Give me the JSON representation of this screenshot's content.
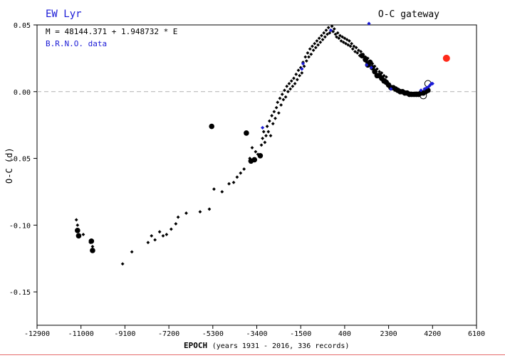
{
  "header": {
    "star_name": "EW Lyr",
    "gateway": "O-C gateway",
    "ephemeris": "M = 48144.371 + 1.948732 * E",
    "source": "B.R.N.O. data"
  },
  "colors": {
    "star_name": "#1a1ad6",
    "brno": "#1a1ad6",
    "highlight": "#ff2a1a",
    "points": "#000000",
    "zero_line": "#b0b0b0"
  },
  "chart_data": {
    "type": "scatter",
    "xlabel": "EPOCH",
    "xlabel_note": "(years 1931 - 2016, 336 records)",
    "ylabel": "O-C (d)",
    "xlim": [
      -12900,
      6100
    ],
    "ylim": [
      -0.175,
      0.05
    ],
    "grid": false,
    "zero_line": true,
    "x_ticks": [
      -12900,
      -11000,
      -9100,
      -7200,
      -5300,
      -3400,
      -1500,
      400,
      2300,
      4200,
      6100
    ],
    "x_tick_labels": [
      "-12900",
      "-11000",
      "-9100",
      "-7200",
      "-5300",
      "-3400",
      "-1500",
      "400",
      "2300",
      "4200",
      "6100"
    ],
    "y_ticks": [
      0.05,
      0.0,
      -0.05,
      -0.1,
      -0.15
    ],
    "y_tick_labels": [
      "0.05",
      "0.00",
      "-0.05",
      "-0.10",
      "-0.15"
    ],
    "series": [
      {
        "marker": "small-diamond",
        "color": "#000000",
        "points": [
          [
            -11200,
            -0.096
          ],
          [
            -11150,
            -0.1
          ],
          [
            -10900,
            -0.107
          ],
          [
            -10600,
            -0.113
          ],
          [
            -10500,
            -0.116
          ],
          [
            -9200,
            -0.129
          ],
          [
            -8800,
            -0.12
          ],
          [
            -8100,
            -0.113
          ],
          [
            -7950,
            -0.108
          ],
          [
            -7800,
            -0.111
          ],
          [
            -7600,
            -0.105
          ],
          [
            -7450,
            -0.108
          ],
          [
            -7300,
            -0.107
          ],
          [
            -7100,
            -0.103
          ],
          [
            -6900,
            -0.099
          ],
          [
            -6800,
            -0.094
          ],
          [
            -6450,
            -0.091
          ],
          [
            -5850,
            -0.09
          ],
          [
            -5450,
            -0.088
          ],
          [
            -5250,
            -0.073
          ],
          [
            -4900,
            -0.075
          ],
          [
            -4600,
            -0.069
          ],
          [
            -4400,
            -0.068
          ],
          [
            -4250,
            -0.064
          ],
          [
            -4100,
            -0.061
          ],
          [
            -3950,
            -0.058
          ],
          [
            -3700,
            -0.05
          ],
          [
            -3600,
            -0.042
          ],
          [
            -3450,
            -0.045
          ],
          [
            -3350,
            -0.047
          ],
          [
            -3200,
            -0.04
          ],
          [
            -3150,
            -0.035
          ],
          [
            -3100,
            -0.03
          ],
          [
            -3050,
            -0.038
          ],
          [
            -3000,
            -0.033
          ],
          [
            -2950,
            -0.026
          ],
          [
            -2900,
            -0.03
          ],
          [
            -2850,
            -0.022
          ],
          [
            -2800,
            -0.033
          ],
          [
            -2750,
            -0.018
          ],
          [
            -2700,
            -0.024
          ],
          [
            -2650,
            -0.015
          ],
          [
            -2600,
            -0.02
          ],
          [
            -2550,
            -0.012
          ],
          [
            -2500,
            -0.008
          ],
          [
            -2450,
            -0.016
          ],
          [
            -2400,
            -0.005
          ],
          [
            -2350,
            -0.01
          ],
          [
            -2300,
            -0.002
          ],
          [
            -2250,
            -0.006
          ],
          [
            -2200,
            0.001
          ],
          [
            -2150,
            -0.004
          ],
          [
            -2100,
            0.004
          ],
          [
            -2050,
            0.0
          ],
          [
            -2000,
            0.006
          ],
          [
            -1950,
            0.002
          ],
          [
            -1900,
            0.008
          ],
          [
            -1850,
            0.004
          ],
          [
            -1800,
            0.01
          ],
          [
            -1750,
            0.006
          ],
          [
            -1700,
            0.013
          ],
          [
            -1650,
            0.009
          ],
          [
            -1600,
            0.016
          ],
          [
            -1550,
            0.012
          ],
          [
            -1500,
            0.018
          ],
          [
            -1450,
            0.014
          ],
          [
            -1400,
            0.022
          ],
          [
            -1350,
            0.019
          ],
          [
            -1300,
            0.026
          ],
          [
            -1250,
            0.023
          ],
          [
            -1200,
            0.029
          ],
          [
            -1150,
            0.026
          ],
          [
            -1100,
            0.032
          ],
          [
            -1050,
            0.028
          ],
          [
            -1000,
            0.034
          ],
          [
            -950,
            0.031
          ],
          [
            -900,
            0.036
          ],
          [
            -850,
            0.033
          ],
          [
            -800,
            0.038
          ],
          [
            -750,
            0.035
          ],
          [
            -700,
            0.04
          ],
          [
            -650,
            0.037
          ],
          [
            -600,
            0.042
          ],
          [
            -550,
            0.039
          ],
          [
            -500,
            0.044
          ],
          [
            -450,
            0.041
          ],
          [
            -400,
            0.046
          ],
          [
            -350,
            0.043
          ],
          [
            -300,
            0.048
          ],
          [
            -250,
            0.044
          ],
          [
            -200,
            0.046
          ],
          [
            -150,
            0.049
          ],
          [
            -100,
            0.045
          ],
          [
            -50,
            0.047
          ],
          [
            0,
            0.043
          ],
          [
            50,
            0.041
          ],
          [
            100,
            0.044
          ],
          [
            150,
            0.04
          ],
          [
            200,
            0.042
          ],
          [
            250,
            0.038
          ],
          [
            300,
            0.041
          ],
          [
            350,
            0.037
          ],
          [
            400,
            0.04
          ],
          [
            450,
            0.036
          ],
          [
            500,
            0.039
          ],
          [
            550,
            0.035
          ],
          [
            600,
            0.038
          ],
          [
            650,
            0.034
          ],
          [
            700,
            0.036
          ],
          [
            750,
            0.032
          ],
          [
            800,
            0.034
          ],
          [
            850,
            0.03
          ],
          [
            900,
            0.033
          ],
          [
            950,
            0.029
          ],
          [
            1000,
            0.031
          ],
          [
            1050,
            0.027
          ],
          [
            1100,
            0.03
          ],
          [
            1150,
            0.026
          ],
          [
            1200,
            0.028
          ],
          [
            1250,
            0.024
          ],
          [
            1300,
            0.026
          ],
          [
            1350,
            0.022
          ],
          [
            1400,
            0.025
          ],
          [
            1450,
            0.021
          ],
          [
            1500,
            0.023
          ],
          [
            1550,
            0.019
          ],
          [
            1600,
            0.021
          ],
          [
            1650,
            0.017
          ],
          [
            1700,
            0.019
          ],
          [
            1750,
            0.015
          ],
          [
            1800,
            0.017
          ],
          [
            1850,
            0.013
          ],
          [
            1900,
            0.015
          ],
          [
            1950,
            0.012
          ],
          [
            2000,
            0.014
          ],
          [
            2050,
            0.01
          ],
          [
            2100,
            0.012
          ],
          [
            2150,
            0.009
          ],
          [
            2200,
            0.011
          ]
        ]
      },
      {
        "marker": "large-dot",
        "color": "#000000",
        "points": [
          [
            -11150,
            -0.104
          ],
          [
            -11100,
            -0.108
          ],
          [
            -10550,
            -0.112
          ],
          [
            -10500,
            -0.119
          ],
          [
            -5350,
            -0.026
          ],
          [
            -3850,
            -0.031
          ],
          [
            -3650,
            -0.052
          ],
          [
            -3500,
            -0.051
          ],
          [
            -3250,
            -0.048
          ],
          [
            1150,
            0.027
          ],
          [
            1300,
            0.024
          ],
          [
            1400,
            0.02
          ],
          [
            1500,
            0.022
          ],
          [
            1600,
            0.018
          ],
          [
            1700,
            0.015
          ],
          [
            1800,
            0.012
          ],
          [
            1900,
            0.012
          ],
          [
            2000,
            0.01
          ],
          [
            2100,
            0.008
          ],
          [
            2200,
            0.007
          ],
          [
            2300,
            0.005
          ],
          [
            2400,
            0.003
          ],
          [
            2500,
            0.003
          ],
          [
            2600,
            0.002
          ],
          [
            2700,
            0.001
          ],
          [
            2800,
            0.0
          ],
          [
            2900,
            0.0
          ],
          [
            3000,
            -0.001
          ],
          [
            3100,
            -0.001
          ],
          [
            3200,
            -0.002
          ],
          [
            3300,
            -0.002
          ],
          [
            3400,
            -0.002
          ],
          [
            3500,
            -0.002
          ],
          [
            3600,
            -0.002
          ],
          [
            3700,
            -0.001
          ],
          [
            3800,
            -0.001
          ],
          [
            3900,
            0.0
          ],
          [
            4000,
            0.001
          ]
        ]
      },
      {
        "marker": "open-circle",
        "color": "#000000",
        "points": [
          [
            3800,
            -0.003
          ],
          [
            4000,
            0.006
          ]
        ]
      },
      {
        "name": "B.R.N.O. data",
        "marker": "blue-diamond",
        "color": "#1a1ad6",
        "points": [
          [
            -3150,
            -0.027
          ],
          [
            -1450,
            0.017
          ],
          [
            -1400,
            0.021
          ],
          [
            -200,
            0.046
          ],
          [
            1350,
            0.02
          ],
          [
            1450,
            0.051
          ],
          [
            1550,
            0.018
          ],
          [
            2400,
            0.002
          ],
          [
            3700,
            0.001
          ],
          [
            3850,
            0.002
          ],
          [
            3950,
            0.003
          ],
          [
            4050,
            0.004
          ],
          [
            4100,
            0.005
          ],
          [
            4150,
            0.006
          ],
          [
            4200,
            0.006
          ]
        ]
      },
      {
        "marker": "red-dot",
        "color": "#ff2a1a",
        "points": [
          [
            4800,
            0.025
          ]
        ]
      }
    ]
  }
}
